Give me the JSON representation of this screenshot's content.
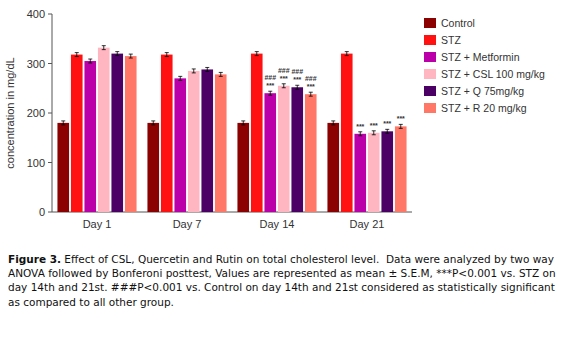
{
  "chart_data": {
    "type": "bar",
    "ylabel": "concentration in mg/dL",
    "categories": [
      "Day 1",
      "Day 7",
      "Day 14",
      "Day 21"
    ],
    "series": [
      {
        "name": "Control",
        "color": "#8B0000",
        "values": [
          180,
          180,
          180,
          180
        ],
        "errors": [
          4,
          4,
          4,
          4
        ]
      },
      {
        "name": "STZ",
        "color": "#FF1111",
        "values": [
          318,
          318,
          320,
          320
        ],
        "errors": [
          4,
          4,
          4,
          4
        ]
      },
      {
        "name": "STZ + Metformin",
        "color": "#BB00AA",
        "values": [
          305,
          270,
          240,
          158
        ],
        "errors": [
          4,
          4,
          4,
          4
        ]
      },
      {
        "name": "STZ + CSL 100 mg/kg",
        "color": "#FFB6C1",
        "values": [
          332,
          285,
          255,
          160
        ],
        "errors": [
          4,
          4,
          4,
          4
        ]
      },
      {
        "name": "STZ + Q 75mg/kg",
        "color": "#4B0066",
        "values": [
          320,
          288,
          252,
          163
        ],
        "errors": [
          4,
          4,
          4,
          4
        ]
      },
      {
        "name": "STZ + R 20 mg/kg",
        "color": "#FF7766",
        "values": [
          315,
          278,
          238,
          173
        ],
        "errors": [
          4,
          4,
          4,
          4
        ]
      }
    ],
    "ylim": [
      0,
      400
    ],
    "yticks": [
      0,
      100,
      200,
      300,
      400
    ],
    "grid": false,
    "legend": "right",
    "annotations": [
      {
        "category": "Day 14",
        "series": "STZ + Metformin",
        "text": "***"
      },
      {
        "category": "Day 14",
        "series": "STZ + Metformin",
        "text": "###"
      },
      {
        "category": "Day 14",
        "series": "STZ + CSL 100 mg/kg",
        "text": "***"
      },
      {
        "category": "Day 14",
        "series": "STZ + CSL 100 mg/kg",
        "text": "###"
      },
      {
        "category": "Day 14",
        "series": "STZ + Q 75mg/kg",
        "text": "***"
      },
      {
        "category": "Day 14",
        "series": "STZ + Q 75mg/kg",
        "text": "###"
      },
      {
        "category": "Day 14",
        "series": "STZ + R 20 mg/kg",
        "text": "***"
      },
      {
        "category": "Day 14",
        "series": "STZ + R 20 mg/kg",
        "text": "###"
      },
      {
        "category": "Day 21",
        "series": "STZ + Metformin",
        "text": "***"
      },
      {
        "category": "Day 21",
        "series": "STZ + CSL 100 mg/kg",
        "text": "***"
      },
      {
        "category": "Day 21",
        "series": "STZ + Q 75mg/kg",
        "text": "***"
      },
      {
        "category": "Day 21",
        "series": "STZ + R 20 mg/kg",
        "text": "***"
      }
    ],
    "figure_label": "Figure 3.",
    "caption": "Effect of CSL, Quercetin and Rutin on total cholesterol level.  Data were analyzed by two way ANOVA followed by Bonferoni posttest, Values are represented as mean ± S.E.M, ***P<0.001 vs. STZ on day 14th and 21st. ###P<0.001 vs. Control on day 14th and 21st considered as statistically significant as compared to all other group."
  }
}
